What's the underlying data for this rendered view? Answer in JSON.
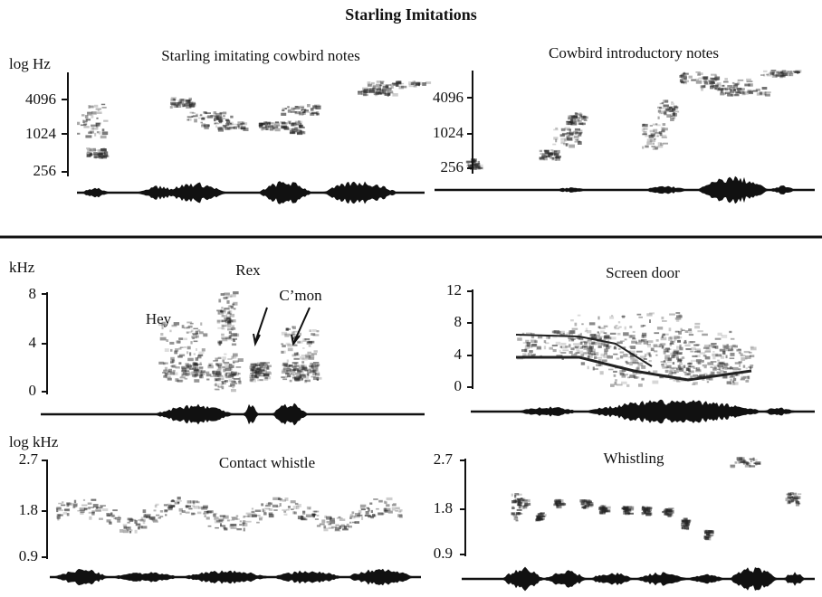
{
  "title": "Starling Imitations",
  "panels": [
    {
      "title": "Starling imitating cowbird notes",
      "axis_label": "log Hz",
      "ticks": [
        "4096",
        "1024",
        "256"
      ]
    },
    {
      "title": "Cowbird introductory notes",
      "ticks": [
        "4096",
        "1024",
        "256"
      ]
    },
    {
      "axis_label": "kHz",
      "ticks": [
        "8",
        "4",
        "0"
      ],
      "annotations": [
        "Hey",
        "Rex",
        "C’mon"
      ]
    },
    {
      "title": "Screen door",
      "ticks": [
        "12",
        "8",
        "4",
        "0"
      ]
    },
    {
      "title": "Contact whistle",
      "axis_label": "log kHz",
      "ticks": [
        "2.7",
        "1.8",
        "0.9"
      ]
    },
    {
      "title": "Whistling",
      "ticks": [
        "2.7",
        "1.8",
        "0.9"
      ]
    }
  ]
}
